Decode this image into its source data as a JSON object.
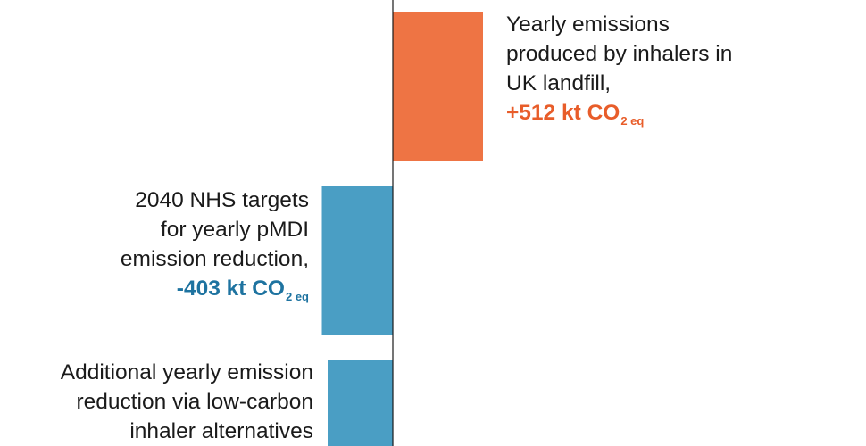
{
  "chart_data": {
    "type": "bar",
    "orientation": "horizontal",
    "categories": [
      "Yearly emissions produced by inhalers in UK landfill,",
      "2040 NHS targets for yearly pMDI emission reduction,",
      "Additional yearly emission reduction via low-carbon inhaler alternatives"
    ],
    "values": [
      512,
      -403,
      -370
    ],
    "unit": "kt CO2 eq",
    "colors": [
      "#ee7444",
      "#4a9ec4",
      "#4a9ec4"
    ],
    "value_label_colors": [
      "#e85d2a",
      "#1e73a0"
    ],
    "grid": false,
    "legend": "none"
  },
  "labels": {
    "landfill": {
      "lines": [
        "Yearly emissions",
        "produced by inhalers in",
        "UK landfill,"
      ],
      "value_main": "+512 kt CO",
      "value_sub": "2 eq"
    },
    "nhs": {
      "lines": [
        "2040 NHS targets",
        "for yearly pMDI",
        "emission reduction,"
      ],
      "value_main": "-403 kt CO",
      "value_sub": "2 eq"
    },
    "additional": {
      "lines": [
        "Additional yearly emission",
        "reduction via low-carbon",
        "inhaler alternatives"
      ]
    }
  }
}
